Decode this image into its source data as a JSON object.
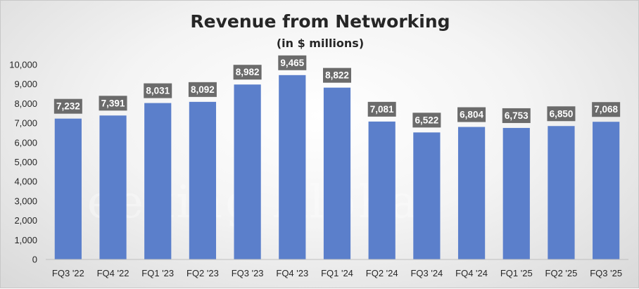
{
  "chart_data": {
    "type": "bar",
    "title": "Revenue from Networking",
    "subtitle": "(in $ millions)",
    "xlabel": "",
    "ylabel": "",
    "categories": [
      "FQ3 '22",
      "FQ4 '22",
      "FQ1 '23",
      "FQ2 '23",
      "FQ3 '23",
      "FQ4 '23",
      "FQ1 '24",
      "FQ2 '24",
      "FQ3 '24",
      "FQ4 '24",
      "FQ1 '25",
      "FQ2 '25",
      "FQ3 '25"
    ],
    "values": [
      7232,
      7391,
      8031,
      8092,
      8982,
      9465,
      8822,
      7081,
      6522,
      6804,
      6753,
      6850,
      7068
    ],
    "data_labels": [
      "7,232",
      "7,391",
      "8,031",
      "8,092",
      "8,982",
      "9,465",
      "8,822",
      "7,081",
      "6,522",
      "6,804",
      "6,753",
      "6,850",
      "7,068"
    ],
    "ylim": [
      0,
      10000
    ],
    "yticks": [
      0,
      1000,
      2000,
      3000,
      4000,
      5000,
      6000,
      7000,
      8000,
      9000,
      10000
    ],
    "ytick_labels": [
      "0",
      "1,000",
      "2,000",
      "3,000",
      "4,000",
      "5,000",
      "6,000",
      "7,000",
      "8,000",
      "9,000",
      "10,000"
    ],
    "grid": false,
    "legend": "none",
    "colors": {
      "bar": "#5b7fcb",
      "label_box": "#6b6b6b",
      "text": "#262626"
    }
  },
  "watermark": "Seeking Alpha"
}
